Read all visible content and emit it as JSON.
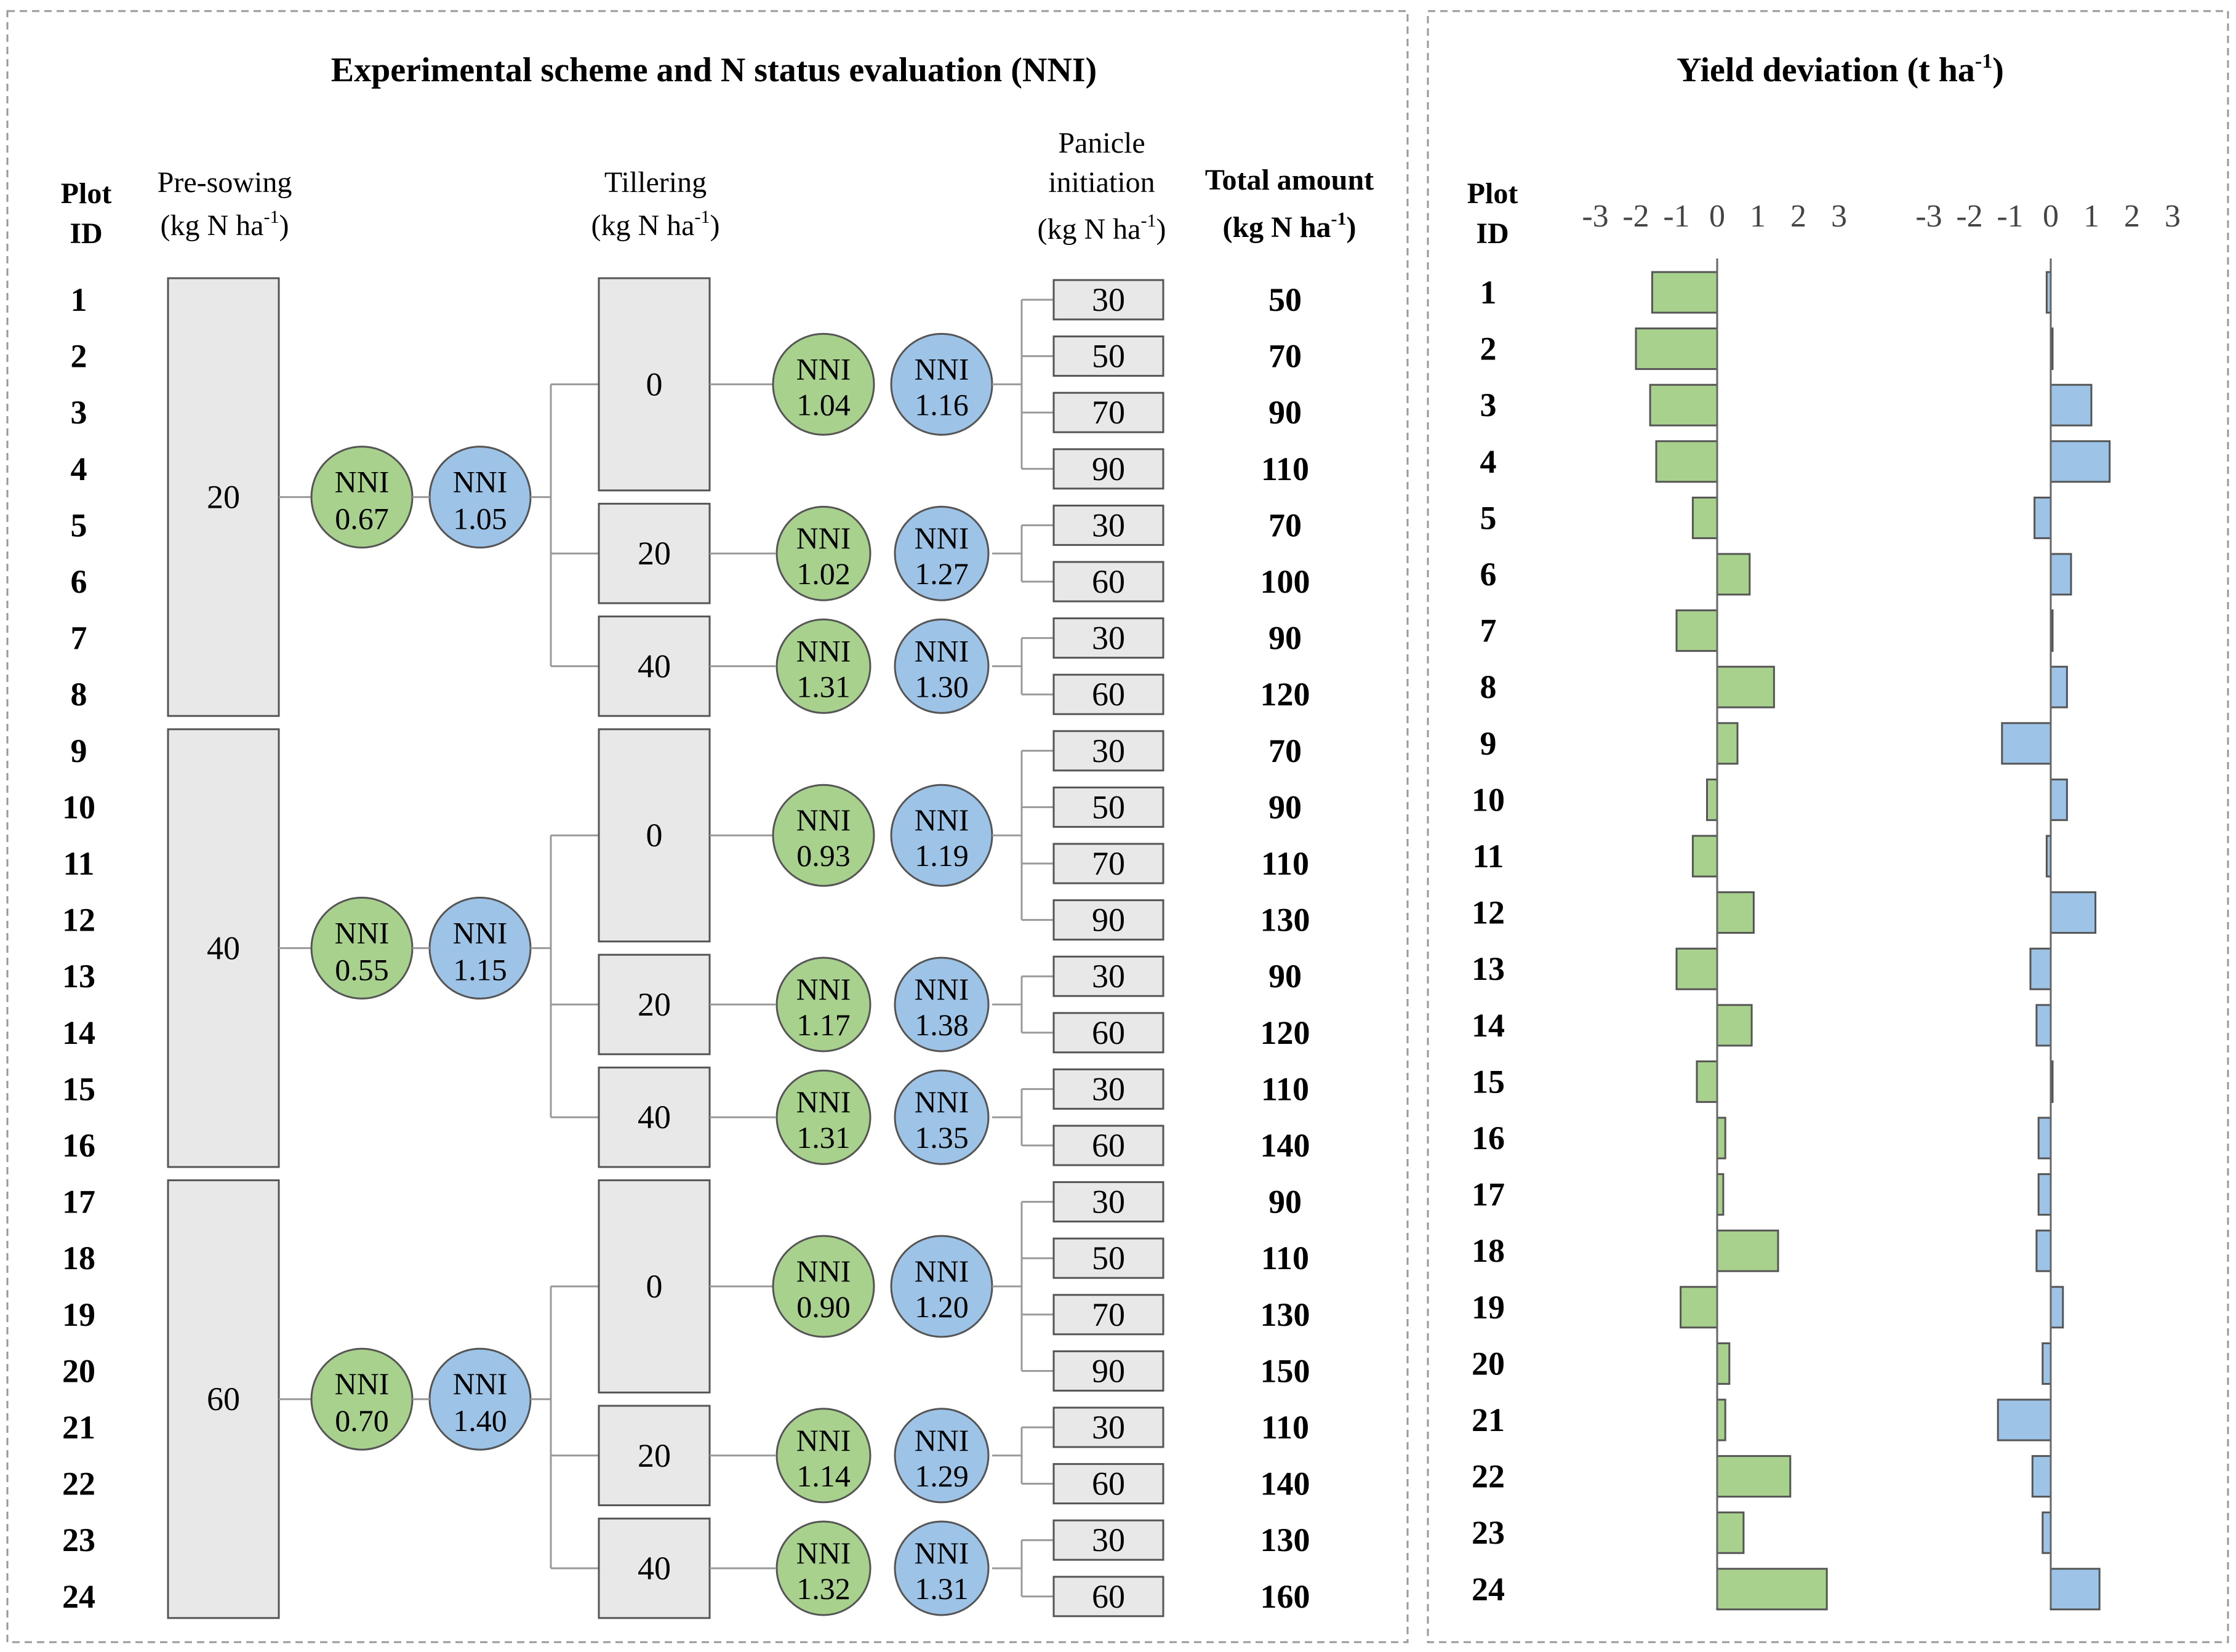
{
  "left_panel": {
    "title": "Experimental scheme and N status evaluation (NNI)",
    "headers": {
      "plot_id": [
        "Plot",
        "ID"
      ],
      "pre_sowing": "Pre-sowing",
      "tillering": "Tillering",
      "panicle": [
        "Panicle",
        "initiation"
      ],
      "total_amount": "Total amount",
      "unit": "(kg N ha",
      "unit_sup": "-1",
      "unit_close": ")"
    },
    "pre_sowing_groups": [
      {
        "dose": "20",
        "nni": [
          {
            "label": "NNI",
            "value": "0.67",
            "color": "green"
          },
          {
            "label": "NNI",
            "value": "1.05",
            "color": "blue"
          }
        ],
        "tillering": [
          {
            "dose": "0",
            "nni": [
              {
                "label": "NNI",
                "value": "1.04"
              },
              {
                "label": "NNI",
                "value": "1.16"
              }
            ],
            "panicle": [
              "30",
              "50",
              "70",
              "90"
            ]
          },
          {
            "dose": "20",
            "nni": [
              {
                "label": "NNI",
                "value": "1.02"
              },
              {
                "label": "NNI",
                "value": "1.27"
              }
            ],
            "panicle": [
              "30",
              "60"
            ]
          },
          {
            "dose": "40",
            "nni": [
              {
                "label": "NNI",
                "value": "1.31"
              },
              {
                "label": "NNI",
                "value": "1.30"
              }
            ],
            "panicle": [
              "30",
              "60"
            ]
          }
        ]
      },
      {
        "dose": "40",
        "nni": [
          {
            "label": "NNI",
            "value": "0.55",
            "color": "green"
          },
          {
            "label": "NNI",
            "value": "1.15",
            "color": "blue"
          }
        ],
        "tillering": [
          {
            "dose": "0",
            "nni": [
              {
                "label": "NNI",
                "value": "0.93"
              },
              {
                "label": "NNI",
                "value": "1.19"
              }
            ],
            "panicle": [
              "30",
              "50",
              "70",
              "90"
            ]
          },
          {
            "dose": "20",
            "nni": [
              {
                "label": "NNI",
                "value": "1.17"
              },
              {
                "label": "NNI",
                "value": "1.38"
              }
            ],
            "panicle": [
              "30",
              "60"
            ]
          },
          {
            "dose": "40",
            "nni": [
              {
                "label": "NNI",
                "value": "1.31"
              },
              {
                "label": "NNI",
                "value": "1.35"
              }
            ],
            "panicle": [
              "30",
              "60"
            ]
          }
        ]
      },
      {
        "dose": "60",
        "nni": [
          {
            "label": "NNI",
            "value": "0.70",
            "color": "green"
          },
          {
            "label": "NNI",
            "value": "1.40",
            "color": "blue"
          }
        ],
        "tillering": [
          {
            "dose": "0",
            "nni": [
              {
                "label": "NNI",
                "value": "0.90"
              },
              {
                "label": "NNI",
                "value": "1.20"
              }
            ],
            "panicle": [
              "30",
              "50",
              "70",
              "90"
            ]
          },
          {
            "dose": "20",
            "nni": [
              {
                "label": "NNI",
                "value": "1.14"
              },
              {
                "label": "NNI",
                "value": "1.29"
              }
            ],
            "panicle": [
              "30",
              "60"
            ]
          },
          {
            "dose": "40",
            "nni": [
              {
                "label": "NNI",
                "value": "1.32"
              },
              {
                "label": "NNI",
                "value": "1.31"
              }
            ],
            "panicle": [
              "30",
              "60"
            ]
          }
        ]
      }
    ],
    "plot_ids": [
      "1",
      "2",
      "3",
      "4",
      "5",
      "6",
      "7",
      "8",
      "9",
      "10",
      "11",
      "12",
      "13",
      "14",
      "15",
      "16",
      "17",
      "18",
      "19",
      "20",
      "21",
      "22",
      "23",
      "24"
    ],
    "total_amounts": [
      "50",
      "70",
      "90",
      "110",
      "70",
      "100",
      "90",
      "120",
      "70",
      "90",
      "110",
      "130",
      "90",
      "120",
      "110",
      "140",
      "90",
      "110",
      "130",
      "150",
      "110",
      "140",
      "130",
      "160"
    ]
  },
  "chart_data": {
    "type": "bar",
    "orientation": "horizontal",
    "title": "Yield deviation (t ha",
    "title_sup": "-1",
    "title_close": ")",
    "row_header": [
      "Plot",
      "ID"
    ],
    "categories": [
      "1",
      "2",
      "3",
      "4",
      "5",
      "6",
      "7",
      "8",
      "9",
      "10",
      "11",
      "12",
      "13",
      "14",
      "15",
      "16",
      "17",
      "18",
      "19",
      "20",
      "21",
      "22",
      "23",
      "24"
    ],
    "xlim": [
      -3,
      3
    ],
    "ticks": [
      "-3",
      "-2",
      "-1",
      "0",
      "1",
      "2",
      "3"
    ],
    "tick_values": [
      -3,
      -2,
      -1,
      0,
      1,
      2,
      3
    ],
    "series": [
      {
        "name": "green",
        "color": "#a9d18e",
        "values": [
          -1.6,
          -2.0,
          -1.65,
          -1.5,
          -0.6,
          0.8,
          -1.0,
          1.4,
          0.5,
          -0.25,
          -0.6,
          0.9,
          -1.0,
          0.85,
          -0.5,
          0.2,
          0.15,
          1.5,
          -0.9,
          0.3,
          0.2,
          1.8,
          0.65,
          2.7
        ]
      },
      {
        "name": "blue",
        "color": "#9dc3e6",
        "values": [
          -0.1,
          0.0,
          1.0,
          1.45,
          -0.4,
          0.5,
          0.0,
          0.4,
          -1.2,
          0.4,
          -0.1,
          1.1,
          -0.5,
          -0.35,
          0.0,
          -0.3,
          -0.3,
          -0.35,
          0.3,
          -0.2,
          -1.3,
          -0.45,
          -0.2,
          1.2
        ]
      }
    ]
  },
  "colors": {
    "green_fill": "#a9d18e",
    "blue_fill": "#9dc3e6",
    "box_fill": "#e8e8e8",
    "stroke": "#555555"
  }
}
